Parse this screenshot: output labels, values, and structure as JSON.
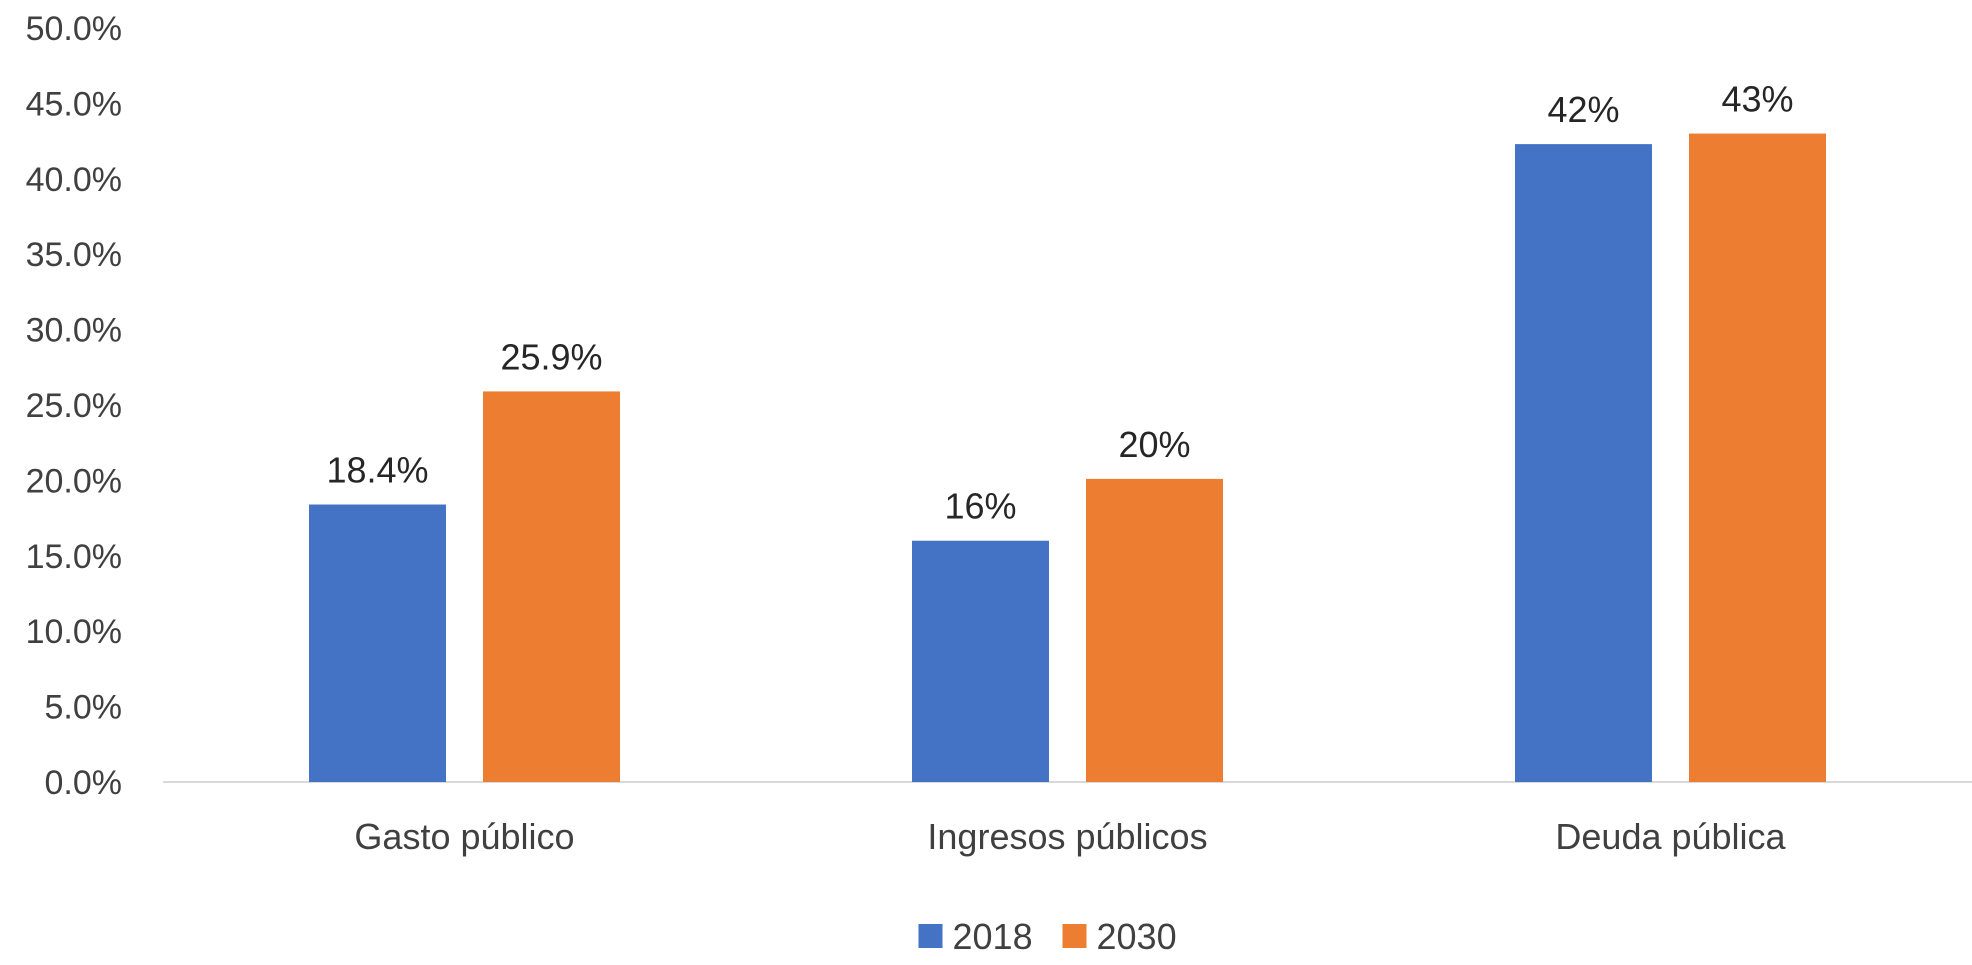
{
  "chart_data": {
    "type": "bar",
    "categories": [
      "Gasto público",
      "Ingresos públicos",
      "Deuda pública"
    ],
    "series": [
      {
        "name": "2018",
        "values": [
          18.4,
          16,
          42.3
        ],
        "labels": [
          "18.4%",
          "16%",
          "42%"
        ],
        "color": "#4472C4"
      },
      {
        "name": "2030",
        "values": [
          25.9,
          20.1,
          43
        ],
        "labels": [
          "25.9%",
          "20%",
          "43%"
        ],
        "color": "#ED7D31"
      }
    ],
    "y_ticks": [
      "0.0%",
      "5.0%",
      "10.0%",
      "15.0%",
      "20.0%",
      "25.0%",
      "30.0%",
      "35.0%",
      "40.0%",
      "45.0%",
      "50.0%"
    ],
    "ylim": [
      0,
      50
    ],
    "title": "",
    "xlabel": "",
    "ylabel": "",
    "grid": false,
    "legend_position": "bottom",
    "axis_color": "#D9D9D9"
  }
}
